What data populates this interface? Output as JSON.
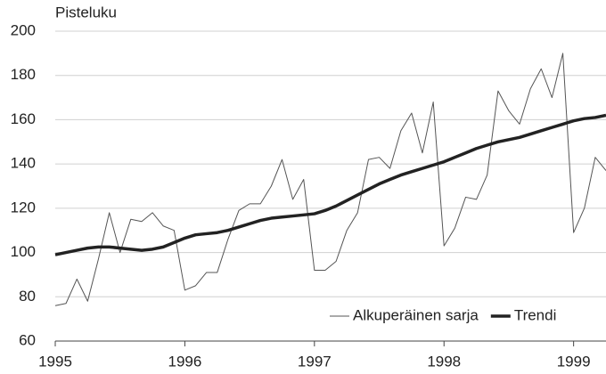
{
  "chart_data": {
    "type": "line",
    "ylabel": "Pisteluku",
    "x": [
      1995,
      1995.083,
      1995.167,
      1995.25,
      1995.333,
      1995.417,
      1995.5,
      1995.583,
      1995.667,
      1995.75,
      1995.833,
      1995.917,
      1996,
      1996.083,
      1996.167,
      1996.25,
      1996.333,
      1996.417,
      1996.5,
      1996.583,
      1996.667,
      1996.75,
      1996.833,
      1996.917,
      1997,
      1997.083,
      1997.167,
      1997.25,
      1997.333,
      1997.417,
      1997.5,
      1997.583,
      1997.667,
      1997.75,
      1997.833,
      1997.917,
      1998,
      1998.083,
      1998.167,
      1998.25,
      1998.333,
      1998.417,
      1998.5,
      1998.583,
      1998.667,
      1998.75,
      1998.833,
      1998.917,
      1999,
      1999.083,
      1999.167,
      1999.25
    ],
    "series": [
      {
        "name": "Alkuperäinen sarja",
        "color": "#555555",
        "width": 1,
        "values": [
          76,
          77,
          88,
          78,
          97,
          118,
          100,
          115,
          114,
          118,
          112,
          110,
          83,
          85,
          91,
          91,
          106,
          119,
          122,
          122,
          130,
          142,
          124,
          133,
          92,
          92,
          96,
          110,
          118,
          142,
          143,
          138,
          155,
          163,
          145,
          168,
          103,
          111,
          125,
          124,
          135,
          173,
          164,
          158,
          174,
          183,
          170,
          190,
          109,
          120,
          143,
          137
        ]
      },
      {
        "name": "Trendi",
        "color": "#222222",
        "width": 3.5,
        "values": [
          99,
          100,
          101,
          102,
          102.5,
          102.5,
          102,
          101.5,
          101,
          101.5,
          102.5,
          104.5,
          106.5,
          108,
          108.5,
          109,
          110,
          111.5,
          113,
          114.5,
          115.5,
          116,
          116.5,
          117,
          117.5,
          119,
          121,
          123.5,
          126,
          128.5,
          131,
          133,
          135,
          136.5,
          138,
          139.5,
          141,
          143,
          145,
          147,
          148.5,
          150,
          151,
          152,
          153.5,
          155,
          156.5,
          158,
          159.5,
          160.5,
          161,
          162
        ]
      }
    ],
    "xlim": [
      1995,
      1999.25
    ],
    "xticks": [
      1995,
      1996,
      1997,
      1998,
      1999
    ],
    "ylim": [
      60,
      200
    ],
    "yticks": [
      60,
      80,
      100,
      120,
      140,
      160,
      180,
      200
    ],
    "grid": true,
    "legend": "lower right"
  }
}
